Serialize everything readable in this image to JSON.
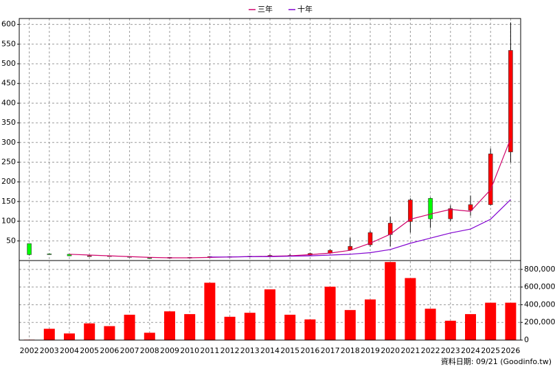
{
  "chart_data": [
    {
      "type": "candlestick",
      "categories": [
        "2002",
        "2003",
        "2004",
        "2005",
        "2006",
        "2007",
        "2008",
        "2009",
        "2010",
        "2011",
        "2012",
        "2013",
        "2014",
        "2015",
        "2016",
        "2017",
        "2018",
        "2019",
        "2020",
        "2021",
        "2022",
        "2023",
        "2024",
        "2025",
        "2026"
      ],
      "open": [
        43,
        17,
        16,
        12,
        11,
        10,
        7,
        6,
        7,
        9,
        10,
        10,
        11,
        13,
        14,
        19,
        27,
        40,
        66,
        99,
        158,
        106,
        128,
        142,
        276
      ],
      "high": [
        43,
        18,
        17,
        13,
        13,
        11,
        8,
        9,
        9,
        11,
        11,
        12,
        15,
        16,
        20,
        29,
        58,
        76,
        111,
        158,
        160,
        140,
        165,
        285,
        605
      ],
      "low": [
        13,
        15,
        11,
        11,
        10,
        8,
        5,
        5,
        7,
        8,
        9,
        9,
        10,
        11,
        13,
        18,
        25,
        35,
        36,
        71,
        83,
        100,
        114,
        140,
        250
      ],
      "close": [
        15,
        16,
        12,
        12,
        12,
        9,
        6,
        8,
        8,
        10,
        10,
        11,
        13,
        13,
        18,
        26,
        36,
        71,
        95,
        154,
        106,
        132,
        142,
        271,
        534
      ],
      "up_color": "#ff0000",
      "down_color": "#00ff00",
      "series": [
        {
          "name": "三年",
          "color": "#d0006a",
          "values": [
            null,
            null,
            16,
            14,
            12,
            10,
            8,
            7,
            7,
            8,
            9,
            10,
            11,
            12,
            15,
            19,
            26,
            44,
            67,
            105,
            118,
            130,
            125,
            180,
            310
          ]
        },
        {
          "name": "十年",
          "color": "#8000d0",
          "values": [
            null,
            null,
            null,
            null,
            null,
            null,
            null,
            null,
            null,
            9,
            9,
            10,
            10,
            11,
            12,
            14,
            16,
            20,
            28,
            44,
            57,
            70,
            80,
            105,
            155
          ]
        }
      ],
      "ylim": [
        0,
        615
      ],
      "yticks": [
        50,
        100,
        150,
        200,
        250,
        300,
        350,
        400,
        450,
        500,
        550,
        600
      ],
      "grid": true,
      "legend": "top"
    },
    {
      "type": "bar",
      "color": "#ff0000",
      "values": [
        5000,
        128000,
        75000,
        189000,
        158000,
        287000,
        83000,
        325000,
        294000,
        649000,
        264000,
        309000,
        574000,
        287000,
        234000,
        604000,
        340000,
        460000,
        883000,
        702000,
        355000,
        219000,
        294000,
        423000,
        423000
      ],
      "ylim": [
        0,
        900000
      ],
      "yticks": [
        0,
        {
          "value": 200000,
          "label": "200,000"
        },
        {
          "value": 400000,
          "label": "400,000"
        },
        {
          "value": 600000,
          "label": "600,000"
        },
        {
          "value": 800000,
          "label": "800,000"
        }
      ],
      "grid": true
    }
  ],
  "footer": "資料日期: 09/21 (Goodinfo.tw)"
}
